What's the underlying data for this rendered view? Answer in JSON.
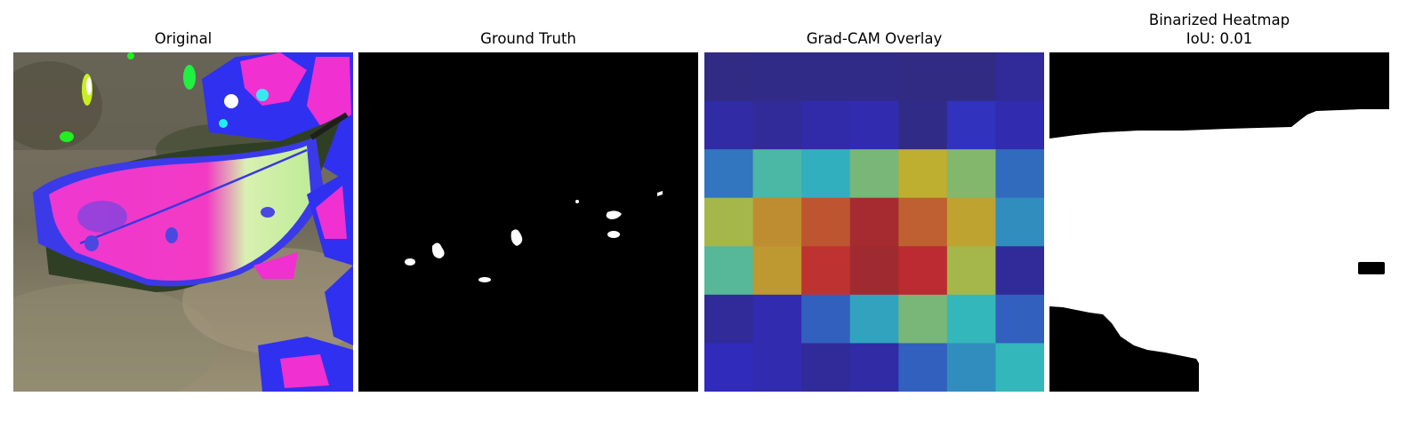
{
  "panels": [
    {
      "title": "Original"
    },
    {
      "title": "Ground Truth"
    },
    {
      "title": "Grad-CAM Overlay"
    },
    {
      "title": "Binarized Heatmap",
      "subtitle": "IoU: 0.01"
    }
  ],
  "heatmap": {
    "colormap": "jet",
    "grid": [
      [
        0.02,
        0.03,
        0.03,
        0.03,
        0.02,
        0.02,
        0.06
      ],
      [
        0.08,
        0.06,
        0.09,
        0.1,
        0.03,
        0.14,
        0.1
      ],
      [
        0.26,
        0.42,
        0.36,
        0.5,
        0.64,
        0.52,
        0.24
      ],
      [
        0.58,
        0.7,
        0.8,
        0.92,
        0.78,
        0.66,
        0.3
      ],
      [
        0.44,
        0.68,
        0.86,
        0.93,
        0.88,
        0.58,
        0.06
      ],
      [
        0.06,
        0.1,
        0.22,
        0.34,
        0.5,
        0.38,
        0.22
      ],
      [
        0.12,
        0.1,
        0.06,
        0.08,
        0.22,
        0.3,
        0.38
      ]
    ]
  },
  "colors": {
    "background": "#ffffff",
    "mask_fg": "#ffffff",
    "mask_bg": "#000000",
    "leaf_magenta": "#f034c8",
    "leaf_blue": "#3a3af0",
    "leaf_highlight": "#c8f0a0"
  }
}
